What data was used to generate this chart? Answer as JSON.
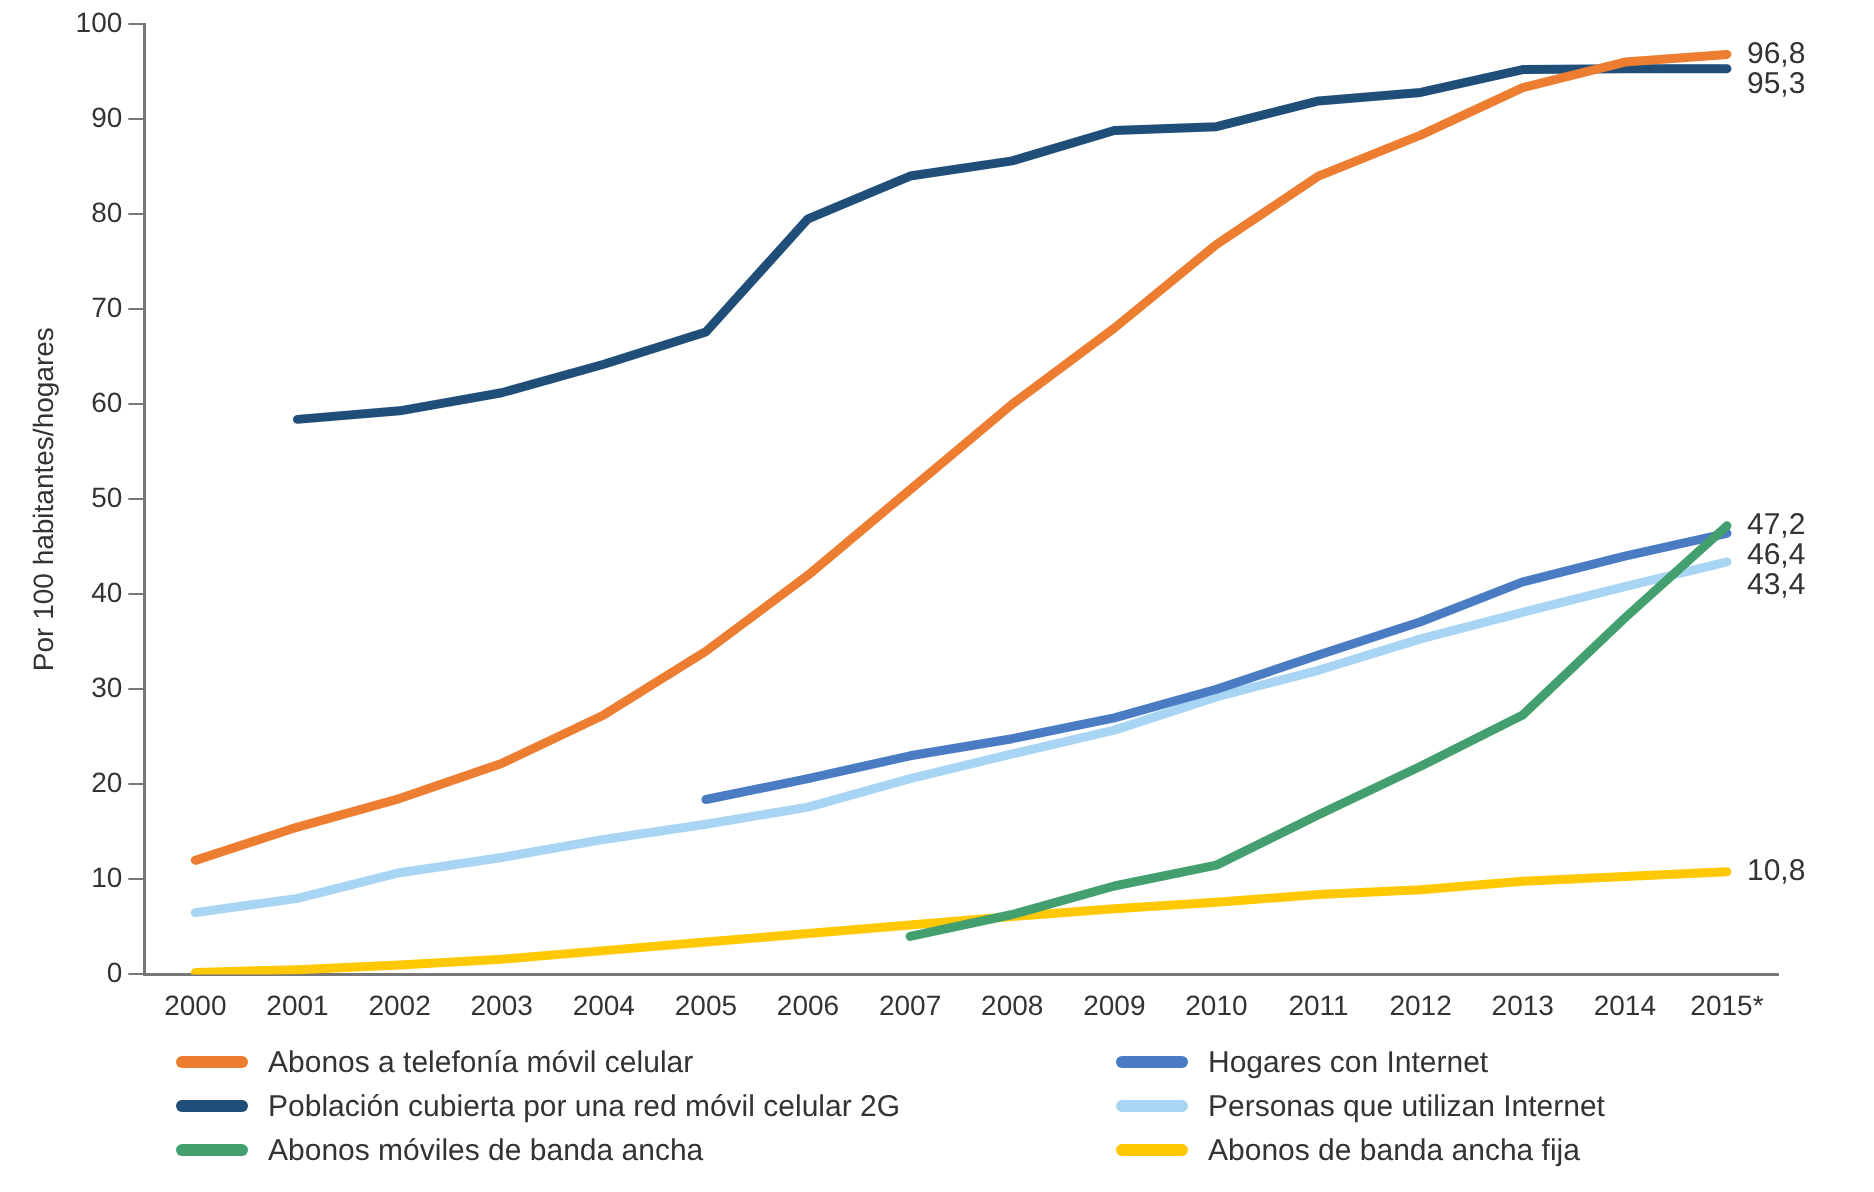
{
  "chart_data": {
    "type": "line",
    "ylabel": "Por 100 habitantes/hogares",
    "categories": [
      "2000",
      "2001",
      "2002",
      "2003",
      "2004",
      "2005",
      "2006",
      "2007",
      "2008",
      "2009",
      "2010",
      "2011",
      "2012",
      "2013",
      "2014",
      "2015*"
    ],
    "ylim": [
      0,
      100
    ],
    "yticks": [
      0,
      10,
      20,
      30,
      40,
      50,
      60,
      70,
      80,
      90,
      100
    ],
    "grid": false,
    "legend": "bottom",
    "marker": "none",
    "line_style": "solid",
    "series": [
      {
        "name": "Abonos a telefonía móvil celular",
        "color": "#ed7d31",
        "values": [
          12,
          15.5,
          18.5,
          22.2,
          27.3,
          34,
          42,
          51,
          60,
          68,
          76.8,
          84,
          88.3,
          93.3,
          96,
          96.8
        ],
        "value_labels": [
          null,
          null,
          null,
          null,
          null,
          null,
          null,
          null,
          null,
          null,
          null,
          null,
          null,
          null,
          null,
          "96,8"
        ]
      },
      {
        "name": "Población cubierta por una red móvil celular 2G",
        "color": "#1f4e79",
        "values": [
          null,
          58.4,
          59.3,
          61.2,
          64.2,
          67.6,
          79.5,
          84,
          85.6,
          88.8,
          89.2,
          91.9,
          92.8,
          95.2,
          95.3,
          95.3
        ],
        "value_labels": [
          null,
          null,
          null,
          null,
          null,
          null,
          null,
          null,
          null,
          null,
          null,
          null,
          null,
          null,
          null,
          "95,3"
        ]
      },
      {
        "name": "Abonos móviles de banda ancha",
        "color": "#43a06e",
        "values": [
          null,
          null,
          null,
          null,
          null,
          null,
          null,
          4,
          6.3,
          9.3,
          11.5,
          16.8,
          21.9,
          27.3,
          37.5,
          47.2
        ],
        "value_labels": [
          null,
          null,
          null,
          null,
          null,
          null,
          null,
          null,
          null,
          null,
          null,
          null,
          null,
          null,
          null,
          "47,2"
        ]
      },
      {
        "name": "Hogares con Internet",
        "color": "#4a7cc4",
        "values": [
          null,
          null,
          null,
          null,
          null,
          18.4,
          20.6,
          23,
          24.8,
          27,
          30,
          33.6,
          37.1,
          41.3,
          44,
          46.4
        ],
        "value_labels": [
          null,
          null,
          null,
          null,
          null,
          null,
          null,
          null,
          null,
          null,
          null,
          null,
          null,
          null,
          null,
          "46,4"
        ]
      },
      {
        "name": "Personas que utilizan Internet",
        "color": "#a9d5f5",
        "values": [
          6.5,
          8,
          10.7,
          12.3,
          14.2,
          15.8,
          17.6,
          20.6,
          23.2,
          25.7,
          29.2,
          32,
          35.3,
          38.1,
          40.8,
          43.4
        ],
        "value_labels": [
          null,
          null,
          null,
          null,
          null,
          null,
          null,
          null,
          null,
          null,
          null,
          null,
          null,
          null,
          null,
          "43,4"
        ]
      },
      {
        "name": "Abonos de banda ancha fija",
        "color": "#ffc800",
        "values": [
          0.2,
          0.5,
          1,
          1.6,
          2.5,
          3.4,
          4.3,
          5.2,
          6.1,
          6.9,
          7.6,
          8.4,
          8.9,
          9.8,
          10.3,
          10.8
        ],
        "value_labels": [
          null,
          null,
          null,
          null,
          null,
          null,
          null,
          null,
          null,
          null,
          null,
          null,
          null,
          null,
          null,
          "10,8"
        ]
      }
    ]
  }
}
